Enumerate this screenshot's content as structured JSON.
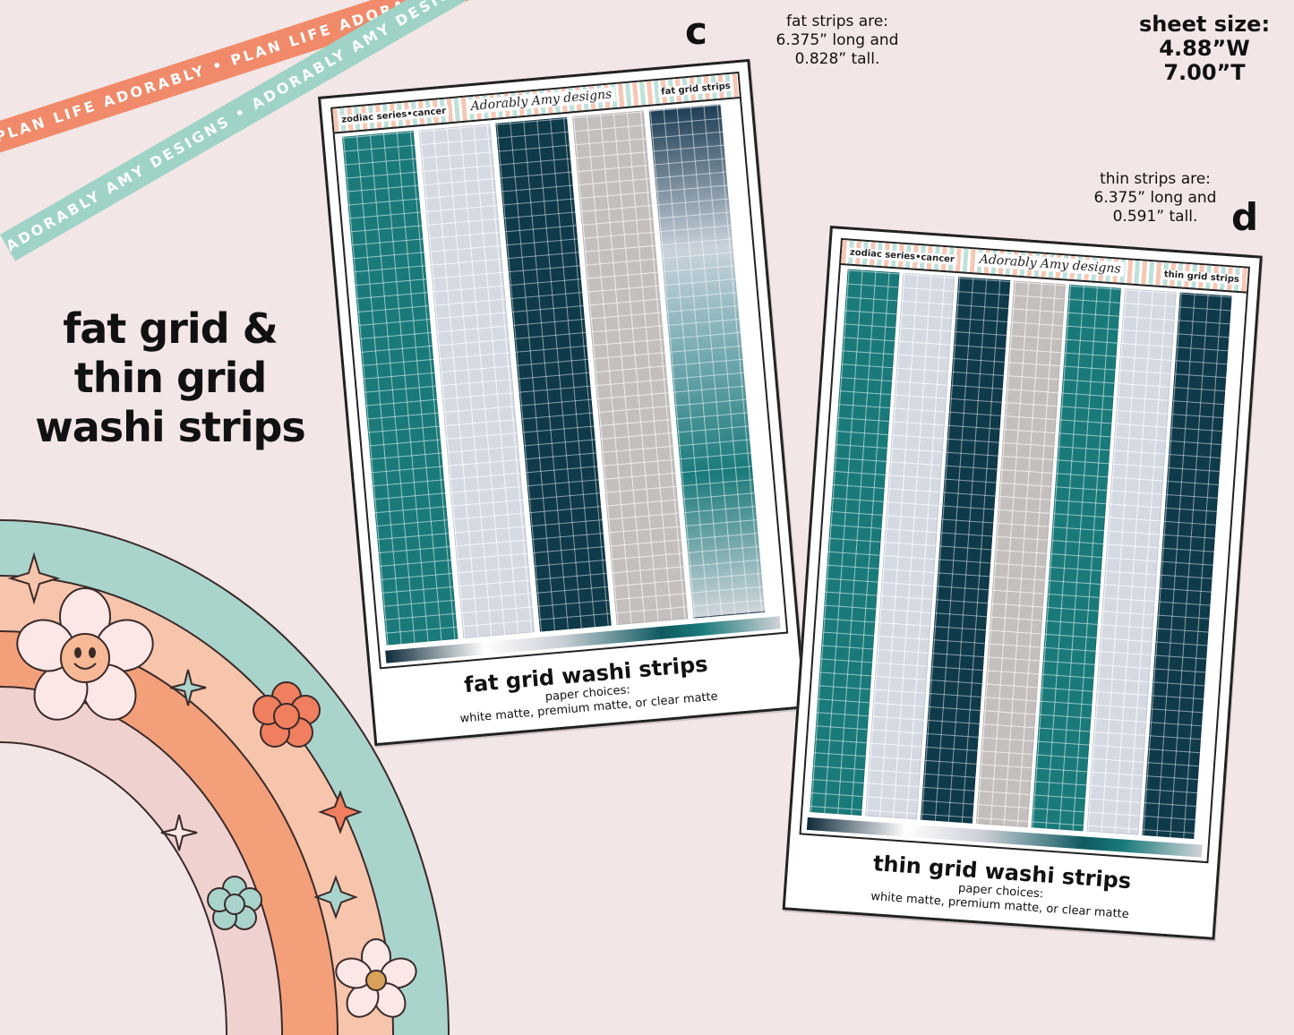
{
  "ribbons": {
    "coral_text": "PLAN LIFE ADORABLY • PLAN LIFE ADORABLY • PLAN LIFE ADORABLY •",
    "mint_text": "ADORABLY AMY DESIGNS • ADORABLY AMY DESIGNS • ADORABLY AMY DESIGNS •",
    "coral_color": "#f08a6a",
    "mint_color": "#9fd3c7"
  },
  "headline": {
    "line1": "fat grid &",
    "line2": "thin grid",
    "line3": "washi strips"
  },
  "notes": {
    "fat": {
      "line1": "fat strips are:",
      "line2": "6.375” long and",
      "line3": "0.828” tall."
    },
    "thin": {
      "line1": "thin strips are:",
      "line2": "6.375” long and",
      "line3": "0.591” tall."
    },
    "sheet_size": {
      "line1": "sheet size:",
      "line2": "4.88”W",
      "line3": "7.00”T"
    },
    "letter_c": "c",
    "letter_d": "d"
  },
  "sheet_c": {
    "header_left": "zodiac series•cancer",
    "brand": "Adorably Amy designs",
    "header_right": "fat grid strips",
    "title": "fat grid washi strips",
    "paper_label": "paper choices:",
    "paper_options": "white matte, premium matte, or clear matte",
    "strip_colors": [
      "#1a7a7a",
      "#d4d9e2",
      "#0f3a4a",
      "#c4bfbd",
      "gradient"
    ]
  },
  "sheet_d": {
    "header_left": "zodiac series•cancer",
    "brand": "Adorably Amy designs",
    "header_right": "thin grid strips",
    "title": "thin grid washi strips",
    "paper_label": "paper choices:",
    "paper_options": "white matte, premium matte, or clear matte",
    "strip_colors": [
      "#1a7a7a",
      "#d4d9e2",
      "#0f3a4a",
      "#c4bfbd",
      "#1a7a7a",
      "#d4d9e2",
      "#0f3a4a"
    ]
  },
  "colors": {
    "background": "#f3e6e6",
    "teal": "#1a7a7a",
    "navy": "#0f3a4a",
    "mint": "#a9d4cc",
    "peach": "#f7c4ac",
    "orange": "#f3a07a",
    "pink": "#efd2cf"
  },
  "icons": [
    "smiley-flower-icon",
    "flower-icon",
    "sparkle-icon",
    "four-point-star-icon"
  ]
}
